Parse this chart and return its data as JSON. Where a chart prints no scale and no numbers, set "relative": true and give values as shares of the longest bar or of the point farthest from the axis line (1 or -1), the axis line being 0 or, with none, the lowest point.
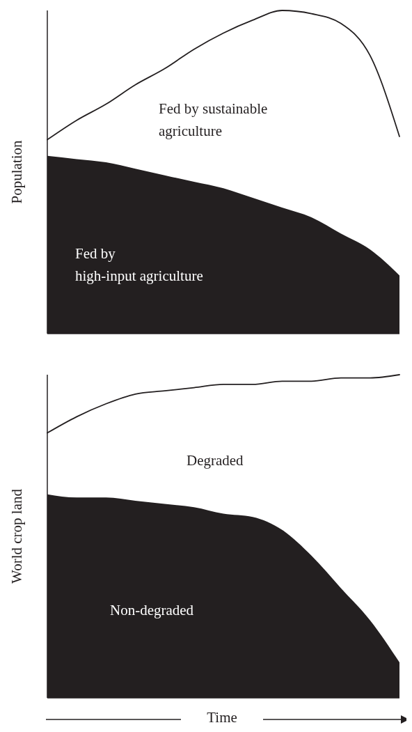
{
  "chart_data": [
    {
      "type": "area",
      "relative": true,
      "ylabel": "Population",
      "categories": [
        null,
        null,
        null,
        null,
        null,
        null,
        null,
        null,
        null,
        null,
        null,
        null,
        null
      ],
      "series": [
        {
          "name": "Fed by\nhigh-input agriculture",
          "color": "#231f20",
          "values": [
            0.55,
            0.54,
            0.53,
            0.51,
            0.49,
            0.47,
            0.45,
            0.42,
            0.39,
            0.36,
            0.31,
            0.26,
            0.18
          ]
        },
        {
          "type": "line",
          "color": "#231f20",
          "values": [
            0.6,
            0.66,
            0.71,
            0.77,
            0.82,
            0.88,
            0.93,
            0.97,
            1,
            0.99,
            0.96,
            0.86,
            0.61
          ]
        }
      ],
      "annotations": [
        "Fed by sustainable\nagriculture"
      ]
    },
    {
      "type": "area",
      "relative": true,
      "ylabel": "World crop land",
      "xlabel": "Time",
      "categories": [
        null,
        null,
        null,
        null,
        null,
        null,
        null,
        null,
        null,
        null,
        null,
        null,
        null
      ],
      "series": [
        {
          "name": "Non-degraded",
          "color": "#231f20",
          "values": [
            0.63,
            0.62,
            0.62,
            0.61,
            0.6,
            0.59,
            0.57,
            0.56,
            0.52,
            0.44,
            0.34,
            0.24,
            0.11
          ]
        },
        {
          "type": "line",
          "color": "#231f20",
          "values": [
            0.82,
            0.87,
            0.91,
            0.94,
            0.95,
            0.96,
            0.97,
            0.97,
            0.98,
            0.98,
            0.99,
            0.99,
            1
          ]
        }
      ],
      "annotations": [
        "Degraded"
      ]
    }
  ]
}
